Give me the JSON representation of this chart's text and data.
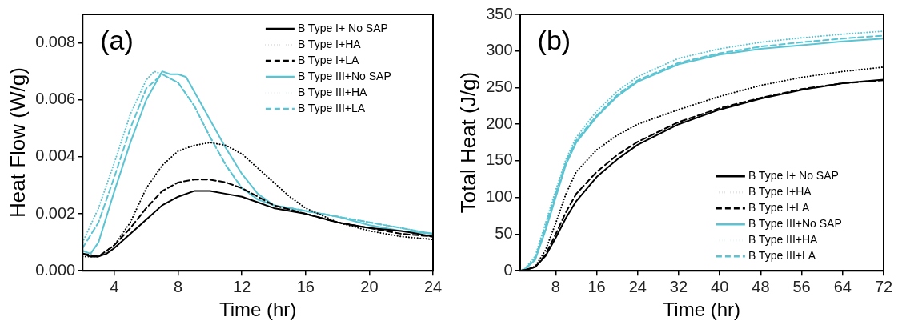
{
  "chart_data": [
    {
      "type": "line",
      "xlabel": "Time (hr)",
      "ylabel": "Heat Flow (W/g)",
      "annotations": [
        "(a)"
      ],
      "legend": "top right",
      "marker": "none",
      "xlim": [
        2,
        24
      ],
      "xticks": [
        4,
        8,
        12,
        16,
        20,
        24
      ],
      "ylim": [
        0,
        0.009
      ],
      "yticks": [
        {
          "value": 0,
          "label": "0.000"
        },
        {
          "value": 0.002,
          "label": "0.002"
        },
        {
          "value": 0.004,
          "label": "0.004"
        },
        {
          "value": 0.006,
          "label": "0.006"
        },
        {
          "value": 0.008,
          "label": "0.008"
        }
      ],
      "series": [
        {
          "name": "B Type I+ No SAP",
          "color": "#000000",
          "line_style": "solid",
          "x": [
            2,
            2.5,
            3,
            3.5,
            4,
            5,
            6,
            7,
            8,
            9,
            10,
            11,
            12,
            13,
            14,
            16,
            18,
            20,
            22,
            24
          ],
          "values": [
            0.0006,
            0.0005,
            0.0005,
            0.0006,
            0.0008,
            0.0013,
            0.0018,
            0.0023,
            0.0026,
            0.0028,
            0.0028,
            0.0027,
            0.0026,
            0.0024,
            0.0022,
            0.002,
            0.0017,
            0.0015,
            0.0014,
            0.0012
          ]
        },
        {
          "name": "B Type I+HA",
          "color": "#000000",
          "line_style": "dotted",
          "x": [
            2,
            3,
            4,
            5,
            6,
            7,
            8,
            9,
            10,
            11,
            12,
            13,
            14,
            15,
            16,
            18,
            20,
            22,
            24
          ],
          "values": [
            0.0005,
            0.0005,
            0.0009,
            0.0017,
            0.0029,
            0.0037,
            0.0042,
            0.0044,
            0.0045,
            0.0044,
            0.0041,
            0.0036,
            0.0031,
            0.0026,
            0.0022,
            0.0017,
            0.0014,
            0.0012,
            0.0011
          ]
        },
        {
          "name": "B Type I+LA",
          "color": "#000000",
          "line_style": "dashed",
          "x": [
            2,
            3,
            4,
            5,
            6,
            7,
            8,
            9,
            10,
            11,
            12,
            13,
            14,
            16,
            18,
            20,
            22,
            24
          ],
          "values": [
            0.0006,
            0.0005,
            0.0009,
            0.0015,
            0.0022,
            0.0028,
            0.0031,
            0.0032,
            0.0032,
            0.0031,
            0.0029,
            0.0026,
            0.0023,
            0.002,
            0.0017,
            0.0015,
            0.0013,
            0.0012
          ]
        },
        {
          "name": "B Type III+No SAP",
          "color": "#5bc4d2",
          "line_style": "solid",
          "x": [
            2,
            2.5,
            3,
            4,
            5,
            6,
            7,
            7.5,
            8,
            8.5,
            9,
            10,
            11,
            12,
            13,
            14,
            16,
            18,
            20,
            22,
            24
          ],
          "values": [
            0.0007,
            0.0006,
            0.001,
            0.0028,
            0.0045,
            0.006,
            0.007,
            0.0069,
            0.0069,
            0.0068,
            0.0063,
            0.0053,
            0.0043,
            0.0034,
            0.0027,
            0.0023,
            0.0021,
            0.0019,
            0.0016,
            0.0014,
            0.0013
          ]
        },
        {
          "name": "B Type III+HA",
          "color": "#5bc4d2",
          "line_style": "dotted",
          "x": [
            2,
            3,
            4,
            5,
            6,
            6.5,
            7,
            8,
            9,
            10,
            11,
            12,
            13,
            14,
            16,
            18,
            20,
            22,
            24
          ],
          "values": [
            0.001,
            0.0022,
            0.0038,
            0.0055,
            0.0067,
            0.007,
            0.0069,
            0.0066,
            0.0058,
            0.0047,
            0.0037,
            0.0029,
            0.0025,
            0.0023,
            0.0021,
            0.0019,
            0.0017,
            0.0015,
            0.0013
          ]
        },
        {
          "name": "B Type III+LA",
          "color": "#5bc4d2",
          "line_style": "dashed",
          "x": [
            2,
            3,
            4,
            5,
            6,
            7,
            8,
            9,
            10,
            11,
            12,
            13,
            14,
            16,
            18,
            20,
            22,
            24
          ],
          "values": [
            0.0008,
            0.0017,
            0.0033,
            0.005,
            0.0064,
            0.0069,
            0.0066,
            0.0058,
            0.0047,
            0.0037,
            0.0029,
            0.0025,
            0.0023,
            0.0021,
            0.0019,
            0.0017,
            0.0015,
            0.0013
          ]
        }
      ]
    },
    {
      "type": "line",
      "xlabel": "Time (hr)",
      "ylabel": "Total Heat (J/g)",
      "annotations": [
        "(b)"
      ],
      "legend": "bottom right",
      "marker": "none",
      "xlim": [
        1,
        72
      ],
      "xticks": [
        8,
        16,
        24,
        32,
        40,
        48,
        56,
        64,
        72
      ],
      "ylim": [
        0,
        350
      ],
      "yticks": [
        0,
        50,
        100,
        150,
        200,
        250,
        300,
        350
      ],
      "series": [
        {
          "name": "B Type I+ No SAP",
          "color": "#000000",
          "line_style": "solid",
          "x": [
            1,
            2,
            4,
            6,
            8,
            10,
            12,
            16,
            20,
            24,
            32,
            40,
            48,
            56,
            64,
            72
          ],
          "values": [
            0,
            1,
            5,
            20,
            45,
            72,
            95,
            128,
            152,
            172,
            200,
            220,
            235,
            247,
            256,
            261
          ]
        },
        {
          "name": "B Type I+HA",
          "color": "#000000",
          "line_style": "dotted",
          "x": [
            1,
            2,
            4,
            6,
            8,
            10,
            12,
            16,
            20,
            24,
            32,
            40,
            48,
            56,
            64,
            72
          ],
          "values": [
            0,
            1,
            6,
            28,
            65,
            105,
            135,
            165,
            185,
            200,
            220,
            238,
            253,
            264,
            272,
            278
          ]
        },
        {
          "name": "B Type I+LA",
          "color": "#000000",
          "line_style": "dashed",
          "x": [
            1,
            2,
            4,
            6,
            8,
            10,
            12,
            16,
            20,
            24,
            32,
            40,
            48,
            56,
            64,
            72
          ],
          "values": [
            0,
            1,
            5,
            22,
            50,
            80,
            105,
            135,
            158,
            176,
            203,
            222,
            236,
            248,
            256,
            260
          ]
        },
        {
          "name": "B Type III+No SAP",
          "color": "#5bc4d2",
          "line_style": "solid",
          "x": [
            1,
            2,
            4,
            6,
            8,
            10,
            12,
            16,
            20,
            24,
            32,
            40,
            48,
            56,
            64,
            72
          ],
          "values": [
            0,
            2,
            15,
            55,
            100,
            145,
            175,
            210,
            238,
            258,
            282,
            295,
            303,
            308,
            313,
            317
          ]
        },
        {
          "name": "B Type III+HA",
          "color": "#5bc4d2",
          "line_style": "dotted",
          "x": [
            1,
            2,
            4,
            6,
            8,
            10,
            12,
            16,
            20,
            24,
            32,
            40,
            48,
            56,
            64,
            72
          ],
          "values": [
            0,
            3,
            20,
            65,
            110,
            152,
            182,
            218,
            245,
            265,
            290,
            303,
            312,
            318,
            323,
            327
          ]
        },
        {
          "name": "B Type III+LA",
          "color": "#5bc4d2",
          "line_style": "dashed",
          "x": [
            1,
            2,
            4,
            6,
            8,
            10,
            12,
            16,
            20,
            24,
            32,
            40,
            48,
            56,
            64,
            72
          ],
          "values": [
            0,
            2,
            17,
            60,
            105,
            148,
            178,
            212,
            240,
            260,
            284,
            297,
            306,
            312,
            317,
            321
          ]
        }
      ]
    }
  ]
}
